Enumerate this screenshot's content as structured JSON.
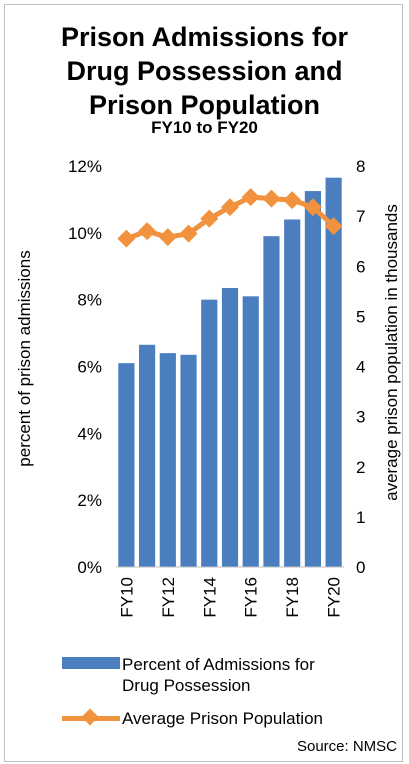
{
  "chart_data": {
    "type": "bar",
    "title_lines": [
      "Prison Admissions for",
      "Drug Possession and",
      "Prison Population"
    ],
    "subtitle": "FY10 to FY20",
    "categories": [
      "FY10",
      "FY11",
      "FY12",
      "FY13",
      "FY14",
      "FY15",
      "FY16",
      "FY17",
      "FY18",
      "FY19",
      "FY20"
    ],
    "tick_labels_x": [
      "FY10",
      "",
      "FY12",
      "",
      "FY14",
      "",
      "FY16",
      "",
      "FY18",
      "",
      "FY20"
    ],
    "series": [
      {
        "name": "Percent of Admissions for Drug Possession",
        "kind": "bar",
        "axis": "left",
        "color": "#4a7ebf",
        "values": [
          6.1,
          6.65,
          6.4,
          6.35,
          8.0,
          8.35,
          8.1,
          9.9,
          10.4,
          11.25,
          11.65
        ]
      },
      {
        "name": "Average Prison Population",
        "kind": "line",
        "axis": "right",
        "color": "#f0923e",
        "values": [
          6.55,
          6.7,
          6.58,
          6.65,
          6.95,
          7.18,
          7.38,
          7.35,
          7.32,
          7.18,
          6.8
        ]
      }
    ],
    "ylabel": "percent of prison admissions",
    "y2label": "average prison population in thousands",
    "ylim": [
      0,
      12
    ],
    "y2lim": [
      0,
      8
    ],
    "yticks": [
      "0%",
      "2%",
      "4%",
      "6%",
      "8%",
      "10%",
      "12%"
    ],
    "y2ticks": [
      "0",
      "1",
      "2",
      "3",
      "4",
      "5",
      "6",
      "7",
      "8"
    ],
    "grid": false,
    "legend_position": "bottom",
    "legend": [
      {
        "label_lines": [
          "Percent of Admissions for",
          "Drug Possession"
        ],
        "swatch": "bar"
      },
      {
        "label_lines": [
          "Average Prison Population"
        ],
        "swatch": "line"
      }
    ],
    "source": "Source: NMSC"
  }
}
